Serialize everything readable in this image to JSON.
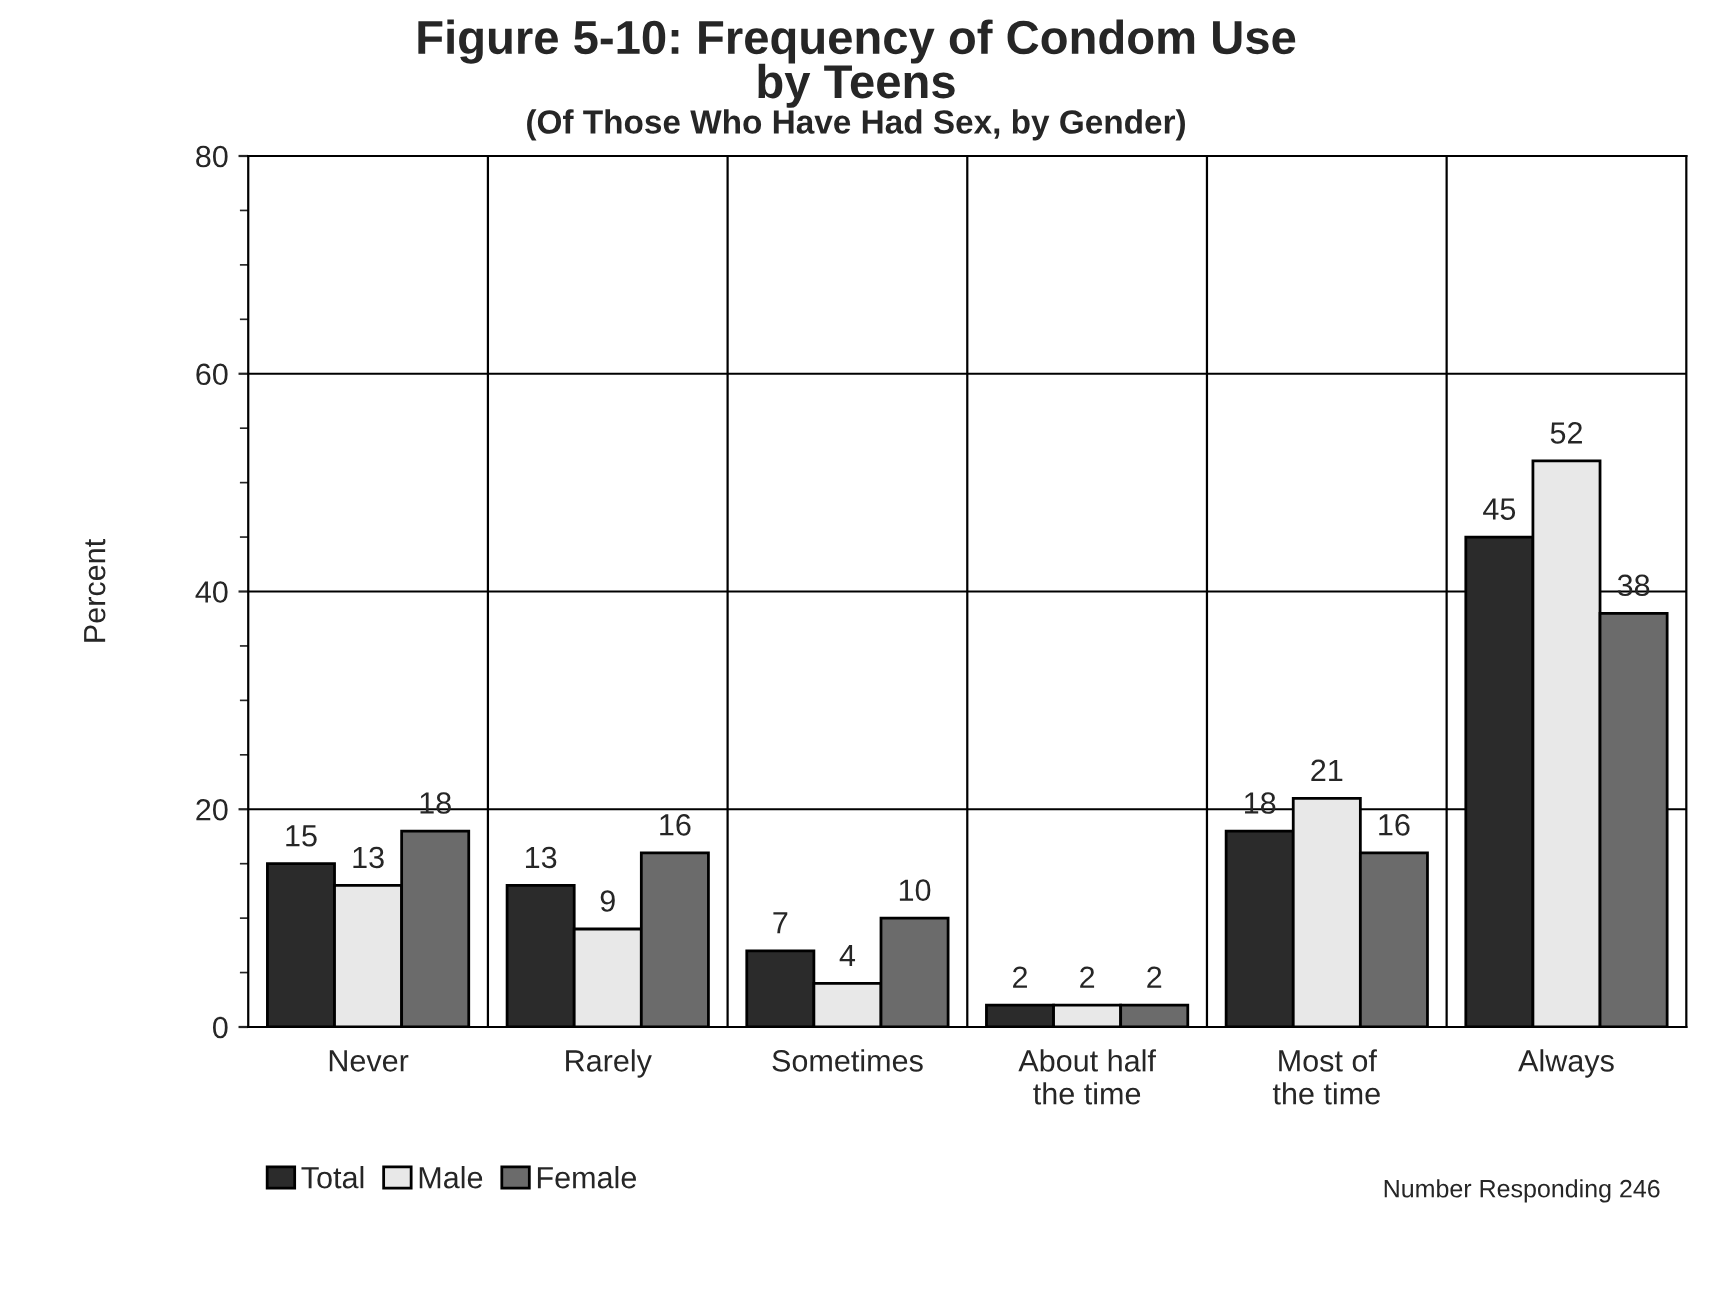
{
  "chart_data": {
    "type": "bar",
    "title": "Figure 5-10: Frequency of Condom Use\nby Teens",
    "subtitle": "(Of Those Who Have Had Sex, by Gender)",
    "ylabel": "Percent",
    "categories": [
      "Never",
      "Rarely",
      "Sometimes",
      "About half\nthe time",
      "Most of\nthe time",
      "Always"
    ],
    "series": [
      {
        "name": "Total",
        "color": "#2b2b2b",
        "values": [
          15,
          13,
          7,
          2,
          18,
          45
        ]
      },
      {
        "name": "Male",
        "color": "#e8e8e8",
        "values": [
          13,
          9,
          4,
          2,
          21,
          52
        ]
      },
      {
        "name": "Female",
        "color": "#6b6b6b",
        "values": [
          18,
          16,
          10,
          2,
          16,
          38
        ]
      }
    ],
    "ylim": [
      0,
      80
    ],
    "yticks": [
      0,
      20,
      40,
      60,
      80
    ],
    "grid": "y",
    "legend": "bottom left",
    "data_labels": true,
    "annotations": [
      "Number Responding 246"
    ]
  }
}
